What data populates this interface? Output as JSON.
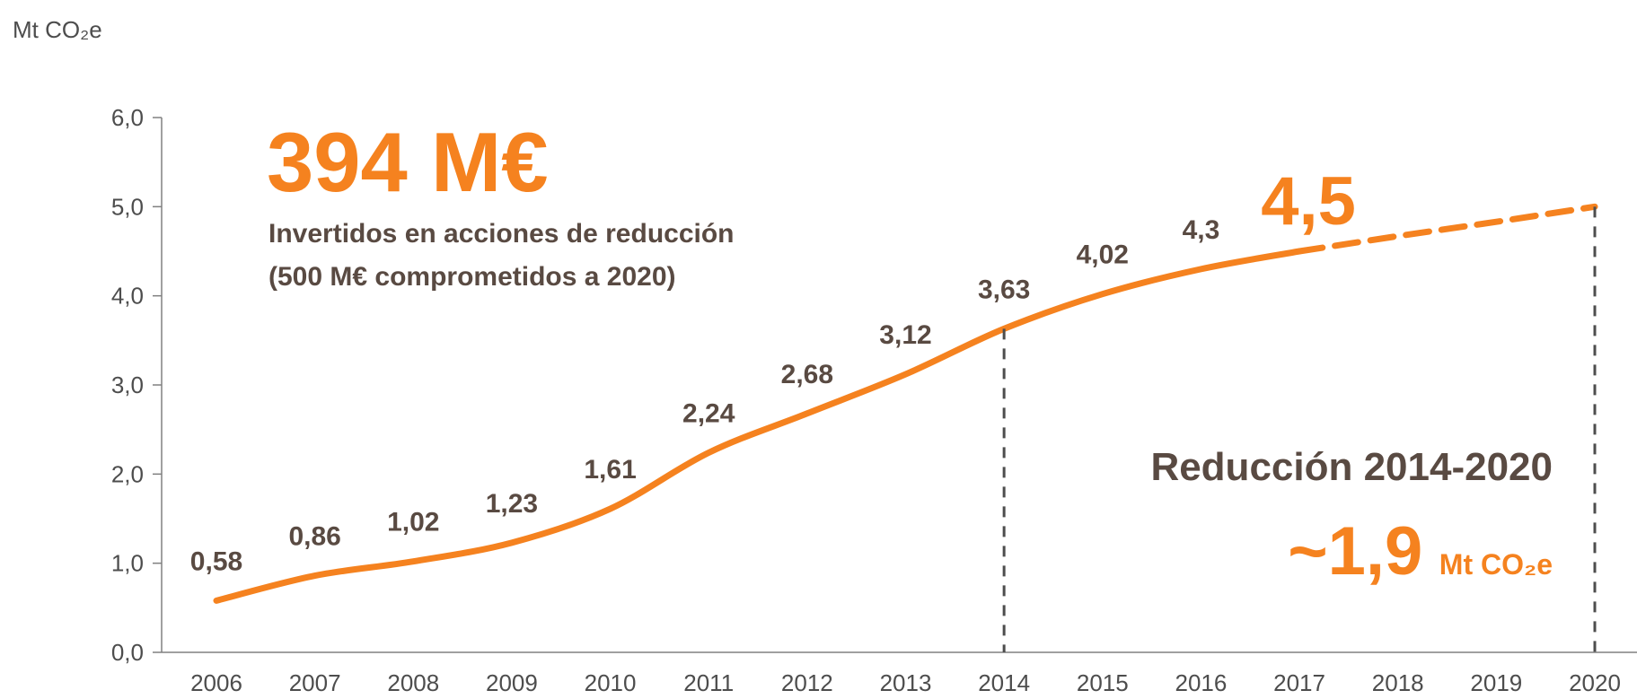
{
  "chart_data": {
    "type": "line",
    "y_axis_label": "Mt CO₂e",
    "categories": [
      "2006",
      "2007",
      "2008",
      "2009",
      "2010",
      "2011",
      "2012",
      "2013",
      "2014",
      "2015",
      "2016",
      "2017",
      "2018",
      "2019",
      "2020"
    ],
    "series": [
      {
        "color": "#f5821f",
        "style": "solid",
        "values": [
          0.58,
          0.86,
          1.02,
          1.23,
          1.61,
          2.24,
          2.68,
          3.12,
          3.63,
          4.02,
          4.3,
          4.5,
          null,
          null,
          null
        ],
        "value_labels": [
          "0,58",
          "0,86",
          "1,02",
          "1,23",
          "1,61",
          "2,24",
          "2,68",
          "3,12",
          "3,63",
          "4,02",
          "4,3",
          "4,5",
          null,
          null,
          null
        ]
      },
      {
        "color": "#f5821f",
        "style": "dashed",
        "values": [
          null,
          null,
          null,
          null,
          null,
          null,
          null,
          null,
          null,
          null,
          null,
          4.5,
          4.67,
          4.83,
          5.0
        ]
      }
    ],
    "ylim": [
      0,
      6
    ],
    "yticks": [
      {
        "value": 0,
        "label": "0,0"
      },
      {
        "value": 1,
        "label": "1,0"
      },
      {
        "value": 2,
        "label": "2,0"
      },
      {
        "value": 3,
        "label": "3,0"
      },
      {
        "value": 4,
        "label": "4,0"
      },
      {
        "value": 5,
        "label": "5,0"
      },
      {
        "value": 6,
        "label": "6,0"
      }
    ],
    "annotations": {
      "headline": "394 M€",
      "sub1": "Invertidos en acciones de reducción",
      "sub2": "(500 M€ comprometidos a 2020)",
      "reduction_title": "Reducción 2014-2020",
      "reduction_value": "~1,9",
      "reduction_unit": "Mt CO₂e"
    }
  }
}
